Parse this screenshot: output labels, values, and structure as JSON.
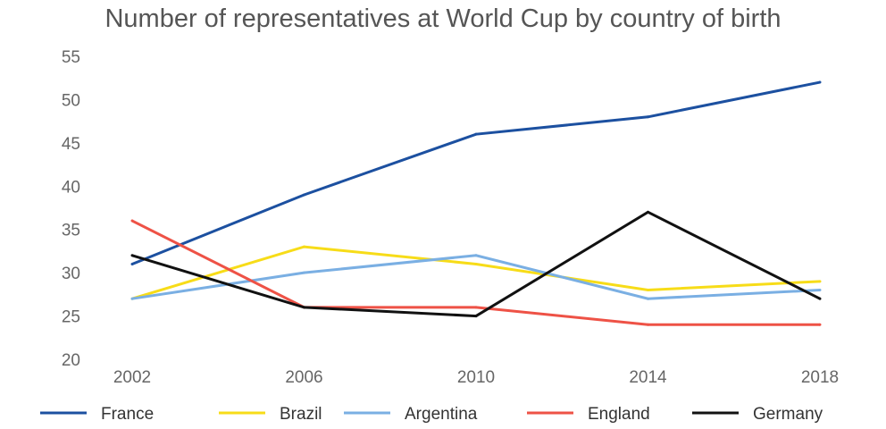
{
  "chart_data": {
    "type": "line",
    "title": "Number of representatives at World Cup by country of birth",
    "xlabel": "",
    "ylabel": "",
    "categories": [
      "2002",
      "2006",
      "2010",
      "2014",
      "2018"
    ],
    "yticks": [
      "20",
      "25",
      "30",
      "35",
      "40",
      "45",
      "50",
      "55"
    ],
    "ylim": [
      20,
      55
    ],
    "grid": false,
    "legend": "bottom",
    "series": [
      {
        "name": "France",
        "color": "#1c50a0",
        "values": [
          31,
          39,
          46,
          48,
          52
        ]
      },
      {
        "name": "Brazil",
        "color": "#f7dc18",
        "values": [
          27,
          33,
          31,
          28,
          29
        ]
      },
      {
        "name": "Argentina",
        "color": "#7aafe3",
        "values": [
          27,
          30,
          32,
          27,
          28
        ]
      },
      {
        "name": "England",
        "color": "#ee5246",
        "values": [
          36,
          26,
          26,
          24,
          24
        ]
      },
      {
        "name": "Germany",
        "color": "#111111",
        "values": [
          32,
          26,
          25,
          37,
          27
        ]
      }
    ]
  }
}
